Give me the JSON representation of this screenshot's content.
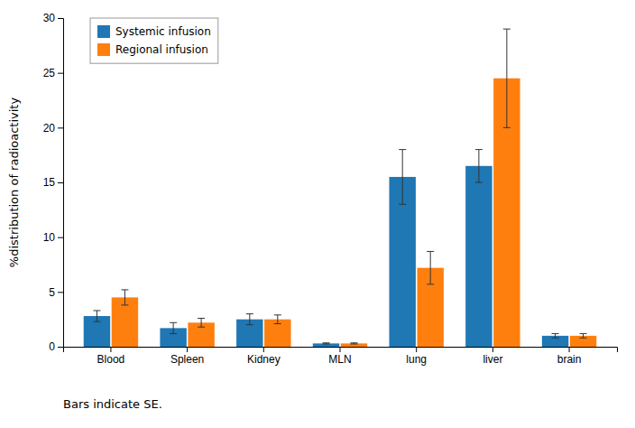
{
  "chart_data": {
    "type": "bar",
    "categories": [
      "Blood",
      "Spleen",
      "Kidney",
      "MLN",
      "lung",
      "liver",
      "brain"
    ],
    "series": [
      {
        "name": "Systemic infusion",
        "values": [
          2.8,
          1.7,
          2.5,
          0.3,
          15.5,
          16.5,
          1.0
        ],
        "errors": [
          0.5,
          0.5,
          0.5,
          0.05,
          2.5,
          1.5,
          0.2
        ]
      },
      {
        "name": "Regional infusion",
        "values": [
          4.5,
          2.2,
          2.5,
          0.3,
          7.2,
          24.5,
          1.0
        ],
        "errors": [
          0.7,
          0.4,
          0.4,
          0.05,
          1.5,
          4.5,
          0.2
        ]
      }
    ],
    "ylabel": "%distribution of radioactivity",
    "ylim": [
      0,
      30
    ],
    "yticks": [
      0,
      5,
      10,
      15,
      20,
      25,
      30
    ],
    "footnote": "Bars indicate SE.",
    "legend": "upper left",
    "grid": false
  }
}
